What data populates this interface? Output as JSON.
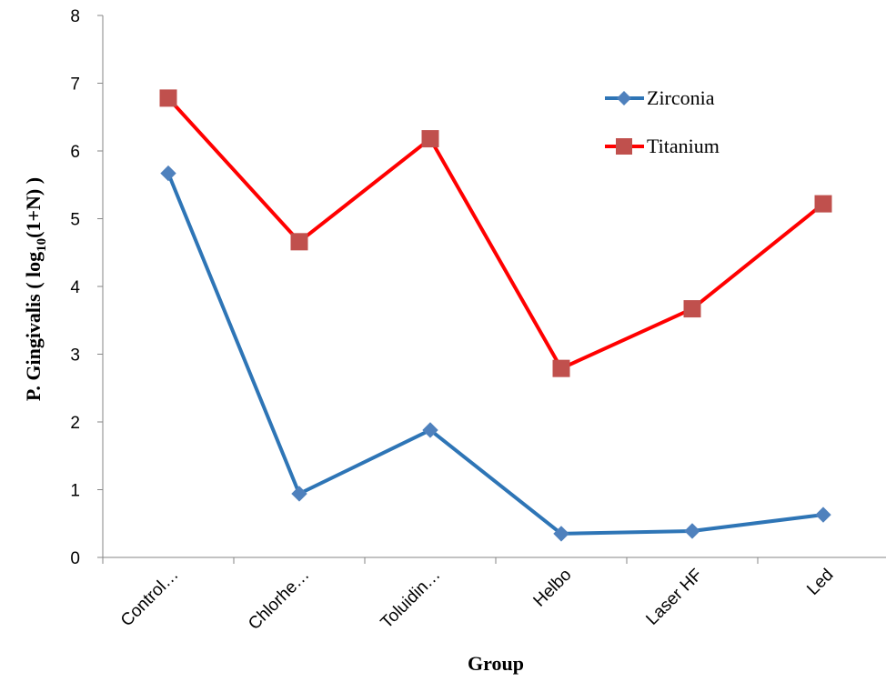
{
  "chart_data": {
    "type": "line",
    "title": "",
    "xlabel": "Group",
    "ylabel": {
      "prefix": "P. Gingivalis ( log",
      "subscript": "10",
      "suffix": "(1+N) )"
    },
    "categories": [
      "Control…",
      "Chlorhe…",
      "Toluidin…",
      "Helbo",
      "Laser HF",
      "Led"
    ],
    "ylim": [
      0,
      8
    ],
    "yticks": [
      "0",
      "1",
      "2",
      "3",
      "4",
      "5",
      "6",
      "7",
      "8"
    ],
    "grid": false,
    "legend_position": "top-right",
    "series": [
      {
        "name": "Zirconia",
        "color": "#2e75b6",
        "marker_color": "#4f81bd",
        "marker": "diamond",
        "values": [
          5.67,
          0.94,
          1.88,
          0.35,
          0.39,
          0.63
        ]
      },
      {
        "name": "Titanium",
        "color": "#ff0000",
        "marker_color": "#c0504d",
        "marker": "square",
        "values": [
          6.78,
          4.66,
          6.18,
          2.79,
          3.67,
          5.22
        ]
      }
    ]
  }
}
